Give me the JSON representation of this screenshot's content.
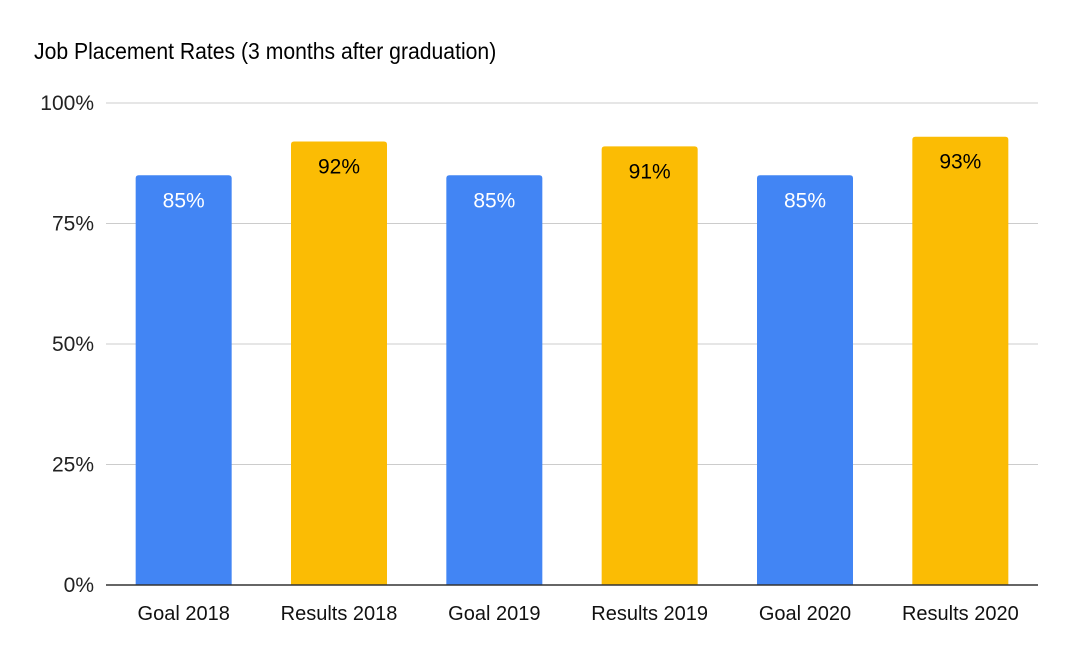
{
  "chart_data": {
    "type": "bar",
    "title": "Job Placement Rates (3 months after graduation)",
    "xlabel": "",
    "ylabel": "",
    "ylim": [
      0,
      100
    ],
    "yticks": [
      0,
      25,
      50,
      75,
      100
    ],
    "ytick_labels": [
      "0%",
      "25%",
      "50%",
      "75%",
      "100%"
    ],
    "grid": true,
    "categories": [
      "Goal 2018",
      "Results 2018",
      "Goal 2019",
      "Results 2019",
      "Goal 2020",
      "Results 2020"
    ],
    "values": [
      85,
      92,
      85,
      91,
      85,
      93
    ],
    "data_labels": [
      "85%",
      "92%",
      "85%",
      "91%",
      "85%",
      "93%"
    ],
    "bar_colors": [
      "#4285F4",
      "#FBBC04",
      "#4285F4",
      "#FBBC04",
      "#4285F4",
      "#FBBC04"
    ],
    "label_colors": [
      "#ffffff",
      "#000000",
      "#ffffff",
      "#000000",
      "#ffffff",
      "#000000"
    ]
  }
}
